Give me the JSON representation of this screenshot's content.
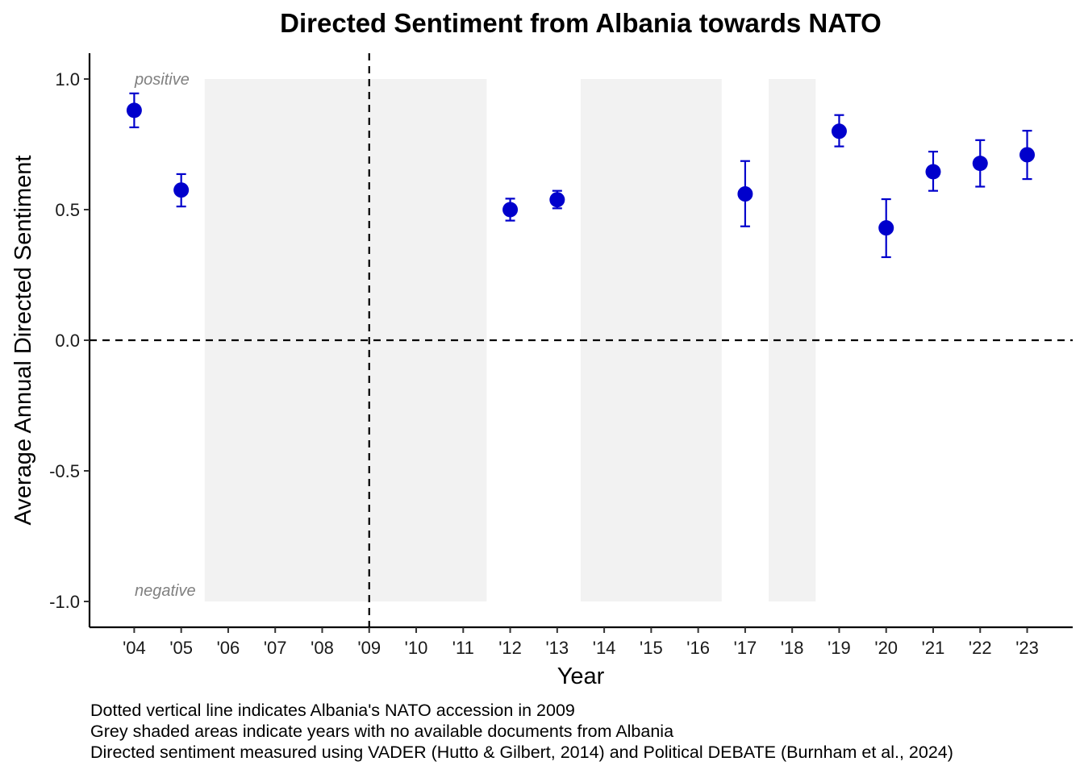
{
  "chart_data": {
    "type": "scatter",
    "title": "Directed Sentiment from Albania towards NATO",
    "xlabel": "Year",
    "ylabel": "Average Annual Directed Sentiment",
    "categories": [
      "'04",
      "'05",
      "'06",
      "'07",
      "'08",
      "'09",
      "'10",
      "'11",
      "'12",
      "'13",
      "'14",
      "'15",
      "'16",
      "'17",
      "'18",
      "'19",
      "'20",
      "'21",
      "'22",
      "'23"
    ],
    "ylim": [
      -1.0,
      1.0
    ],
    "yticks": [
      "1.0",
      "0.5",
      "0.0",
      "-0.5",
      "-1.0"
    ],
    "ytick_values": [
      1.0,
      0.5,
      0.0,
      -0.5,
      -1.0
    ],
    "series_color": "#0000cc",
    "shade_color": "#f2f2f2",
    "points": [
      {
        "x": "'04",
        "y": 0.88,
        "lower": 0.815,
        "upper": 0.945
      },
      {
        "x": "'05",
        "y": 0.575,
        "lower": 0.512,
        "upper": 0.636
      },
      {
        "x": "'12",
        "y": 0.5,
        "lower": 0.458,
        "upper": 0.542
      },
      {
        "x": "'13",
        "y": 0.538,
        "lower": 0.505,
        "upper": 0.572
      },
      {
        "x": "'17",
        "y": 0.56,
        "lower": 0.436,
        "upper": 0.686
      },
      {
        "x": "'19",
        "y": 0.8,
        "lower": 0.742,
        "upper": 0.862
      },
      {
        "x": "'20",
        "y": 0.43,
        "lower": 0.318,
        "upper": 0.54
      },
      {
        "x": "'21",
        "y": 0.645,
        "lower": 0.572,
        "upper": 0.722
      },
      {
        "x": "'22",
        "y": 0.677,
        "lower": 0.588,
        "upper": 0.766
      },
      {
        "x": "'23",
        "y": 0.71,
        "lower": 0.617,
        "upper": 0.802
      }
    ],
    "no_data_ranges": [
      [
        "'06",
        "'11"
      ],
      [
        "'14",
        "'16"
      ],
      [
        "'18",
        "'18"
      ]
    ],
    "accession_year": "'09",
    "reference_line_y": 0.0,
    "annotations": {
      "positive": "positive",
      "negative": "negative"
    },
    "grid": false,
    "legend": "none"
  },
  "notes": [
    "Dotted vertical line indicates Albania's NATO accession in 2009",
    "Grey shaded areas indicate years with no available documents from Albania",
    "Directed sentiment measured using VADER (Hutto & Gilbert, 2014) and Political DEBATE (Burnham et al., 2024)"
  ]
}
